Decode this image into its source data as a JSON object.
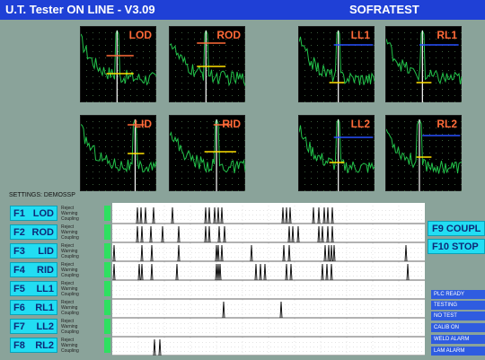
{
  "titlebar": {
    "app_title": "U.T. Tester ON LINE - V3.09",
    "brand": "SOFRATEST"
  },
  "scopes": [
    {
      "label": "LOD"
    },
    {
      "label": "ROD"
    },
    {
      "label": "LL1"
    },
    {
      "label": "RL1"
    },
    {
      "label": "LID"
    },
    {
      "label": "RID"
    },
    {
      "label": "LL2"
    },
    {
      "label": "RL2"
    }
  ],
  "settings_label": "SETTINGS: DEMOSSP",
  "channels": [
    {
      "key": "F1",
      "label": "LOD"
    },
    {
      "key": "F2",
      "label": "ROD"
    },
    {
      "key": "F3",
      "label": "LID"
    },
    {
      "key": "F4",
      "label": "RID"
    },
    {
      "key": "F5",
      "label": "LL1"
    },
    {
      "key": "F6",
      "label": "RL1"
    },
    {
      "key": "F7",
      "label": "LL2"
    },
    {
      "key": "F8",
      "label": "RL2"
    }
  ],
  "channel_sublabels": [
    "Reject",
    "Warning",
    "Coupling"
  ],
  "right_buttons": {
    "f9": "F9  COUPL",
    "f10": "F10  STOP"
  },
  "status": [
    "PLC READY",
    "TESTING",
    "NO TEST",
    "CALIB ON",
    "WELD ALARM",
    "LAM ALARM"
  ],
  "colors": {
    "background": "#8aa39a",
    "titlebar": "#1f40d6",
    "function_key": "#22ddf3",
    "scope_label": "#ff6a38",
    "status_bg": "#2f5ce0",
    "led": "#2ee060",
    "ascan_trace": "#22c24a"
  }
}
